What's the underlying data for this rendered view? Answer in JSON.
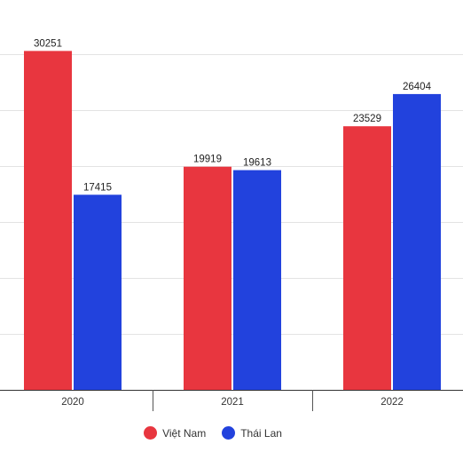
{
  "chart_data": {
    "type": "bar",
    "categories": [
      "2020",
      "2021",
      "2022"
    ],
    "series": [
      {
        "name": "Việt Nam",
        "color": "#e8363f",
        "values": [
          30251,
          19919,
          23529
        ]
      },
      {
        "name": "Thái Lan",
        "color": "#2242dd",
        "values": [
          17415,
          19613,
          26404
        ]
      }
    ],
    "ylim": [
      0,
      30000
    ],
    "grid": true,
    "legend_position": "bottom",
    "title": "",
    "xlabel": "",
    "ylabel": ""
  }
}
